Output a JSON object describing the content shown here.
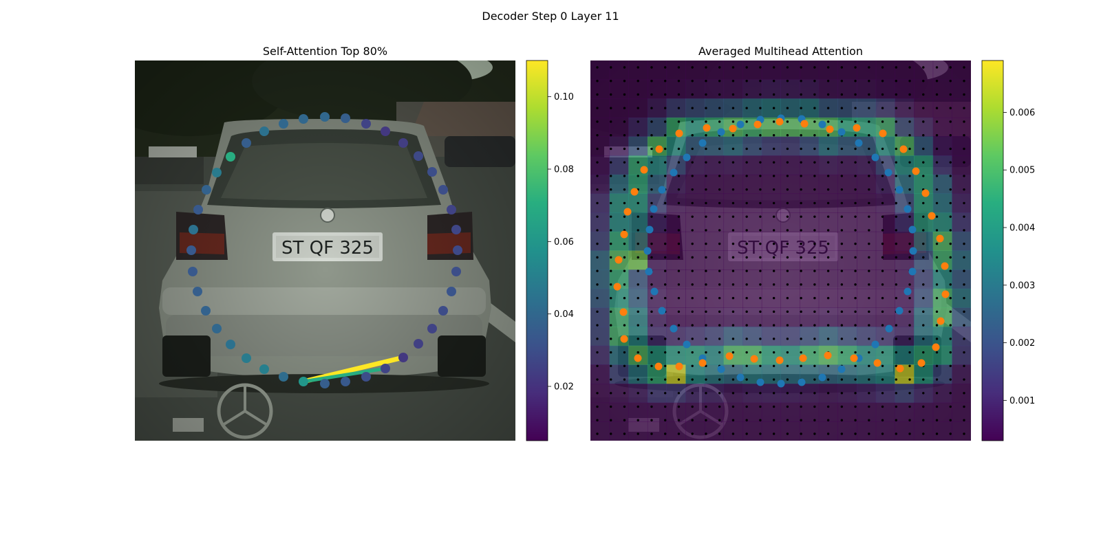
{
  "figure": {
    "suptitle": "Decoder Step 0 Layer 11"
  },
  "chart_data": [
    {
      "type": "scatter",
      "title": "Self-Attention Top 80%",
      "background": "car rear view photograph",
      "colormap": "viridis",
      "colorbar": {
        "min": 0.005,
        "max": 0.11,
        "ticks": [
          0.02,
          0.04,
          0.06,
          0.08,
          0.1
        ]
      },
      "points": [
        {
          "x": 472,
          "y": 170,
          "v": 0.04
        },
        {
          "x": 502,
          "y": 172,
          "v": 0.036
        },
        {
          "x": 532,
          "y": 180,
          "v": 0.026
        },
        {
          "x": 560,
          "y": 191,
          "v": 0.022
        },
        {
          "x": 586,
          "y": 208,
          "v": 0.024
        },
        {
          "x": 608,
          "y": 227,
          "v": 0.028
        },
        {
          "x": 628,
          "y": 250,
          "v": 0.03
        },
        {
          "x": 644,
          "y": 276,
          "v": 0.03
        },
        {
          "x": 656,
          "y": 305,
          "v": 0.026
        },
        {
          "x": 663,
          "y": 334,
          "v": 0.027
        },
        {
          "x": 665,
          "y": 364,
          "v": 0.028
        },
        {
          "x": 663,
          "y": 395,
          "v": 0.03
        },
        {
          "x": 656,
          "y": 424,
          "v": 0.032
        },
        {
          "x": 644,
          "y": 452,
          "v": 0.029
        },
        {
          "x": 628,
          "y": 478,
          "v": 0.026
        },
        {
          "x": 608,
          "y": 500,
          "v": 0.025
        },
        {
          "x": 586,
          "y": 520,
          "v": 0.022
        },
        {
          "x": 560,
          "y": 536,
          "v": 0.026
        },
        {
          "x": 532,
          "y": 548,
          "v": 0.03
        },
        {
          "x": 502,
          "y": 555,
          "v": 0.034
        },
        {
          "x": 472,
          "y": 558,
          "v": 0.036
        },
        {
          "x": 441,
          "y": 555,
          "v": 0.06
        },
        {
          "x": 412,
          "y": 548,
          "v": 0.042
        },
        {
          "x": 384,
          "y": 537,
          "v": 0.05
        },
        {
          "x": 358,
          "y": 521,
          "v": 0.048
        },
        {
          "x": 335,
          "y": 501,
          "v": 0.044
        },
        {
          "x": 315,
          "y": 478,
          "v": 0.04
        },
        {
          "x": 299,
          "y": 452,
          "v": 0.038
        },
        {
          "x": 287,
          "y": 424,
          "v": 0.036
        },
        {
          "x": 280,
          "y": 395,
          "v": 0.034
        },
        {
          "x": 278,
          "y": 364,
          "v": 0.034
        },
        {
          "x": 281,
          "y": 334,
          "v": 0.044
        },
        {
          "x": 288,
          "y": 305,
          "v": 0.034
        },
        {
          "x": 300,
          "y": 276,
          "v": 0.038
        },
        {
          "x": 315,
          "y": 251,
          "v": 0.048
        },
        {
          "x": 335,
          "y": 228,
          "v": 0.07
        },
        {
          "x": 358,
          "y": 208,
          "v": 0.036
        },
        {
          "x": 384,
          "y": 191,
          "v": 0.044
        },
        {
          "x": 412,
          "y": 180,
          "v": 0.04
        },
        {
          "x": 441,
          "y": 173,
          "v": 0.04
        }
      ],
      "segments": [
        {
          "from": [
            441,
            555
          ],
          "to": [
            586,
            520
          ],
          "v": 0.11
        },
        {
          "from": [
            441,
            555
          ],
          "to": [
            560,
            536
          ],
          "v": 0.07
        }
      ]
    },
    {
      "type": "heatmap",
      "title": "Averaged Multihead Attention",
      "background": "car rear view photograph",
      "colormap": "viridis",
      "colorbar": {
        "min": 0.0003,
        "max": 0.0069,
        "ticks": [
          0.001,
          0.002,
          0.003,
          0.004,
          0.005,
          0.006
        ]
      },
      "series": [
        {
          "color": "#1f77b4",
          "points": [
            [
              1135,
              172
            ],
            [
              1165,
              173
            ],
            [
              1105,
              174
            ],
            [
              1195,
              181
            ],
            [
              1076,
              181
            ],
            [
              1223,
              192
            ],
            [
              1048,
              192
            ],
            [
              1248,
              208
            ],
            [
              1021,
              208
            ],
            [
              1272,
              229
            ],
            [
              998,
              229
            ],
            [
              1291,
              251
            ],
            [
              979,
              251
            ],
            [
              1307,
              276
            ],
            [
              962,
              276
            ],
            [
              1319,
              304
            ],
            [
              950,
              304
            ],
            [
              1326,
              334
            ],
            [
              944,
              334
            ],
            [
              1327,
              365
            ],
            [
              941,
              365
            ],
            [
              1326,
              395
            ],
            [
              943,
              395
            ],
            [
              1319,
              424
            ],
            [
              951,
              424
            ],
            [
              1307,
              452
            ],
            [
              962,
              452
            ],
            [
              1292,
              478
            ],
            [
              979,
              478
            ],
            [
              1272,
              501
            ],
            [
              998,
              501
            ],
            [
              1248,
              521
            ],
            [
              1021,
              521
            ],
            [
              1223,
              537
            ],
            [
              1048,
              537
            ],
            [
              1195,
              549
            ],
            [
              1076,
              549
            ],
            [
              1165,
              556
            ],
            [
              1105,
              556
            ],
            [
              1135,
              558
            ]
          ]
        },
        {
          "color": "#ff7f0e",
          "points": [
            [
              1133,
              177
            ],
            [
              1169,
              180
            ],
            [
              1101,
              181
            ],
            [
              1065,
              187
            ],
            [
              1027,
              186
            ],
            [
              1206,
              188
            ],
            [
              1245,
              186
            ],
            [
              1283,
              194
            ],
            [
              987,
              194
            ],
            [
              1313,
              217
            ],
            [
              958,
              217
            ],
            [
              1331,
              249
            ],
            [
              936,
              247
            ],
            [
              1345,
              281
            ],
            [
              922,
              279
            ],
            [
              1354,
              314
            ],
            [
              912,
              308
            ],
            [
              1366,
              347
            ],
            [
              907,
              341
            ],
            [
              1373,
              387
            ],
            [
              899,
              378
            ],
            [
              1374,
              428
            ],
            [
              897,
              417
            ],
            [
              1367,
              467
            ],
            [
              906,
              454
            ],
            [
              1360,
              505
            ],
            [
              907,
              493
            ],
            [
              1339,
              528
            ],
            [
              927,
              521
            ],
            [
              1308,
              536
            ],
            [
              957,
              533
            ],
            [
              1275,
              528
            ],
            [
              987,
              533
            ],
            [
              1241,
              521
            ],
            [
              1021,
              528
            ],
            [
              1203,
              517
            ],
            [
              1060,
              518
            ],
            [
              1167,
              521
            ],
            [
              1096,
              522
            ],
            [
              1133,
              524
            ]
          ]
        }
      ],
      "grid": {
        "cols": 20,
        "rows": 20
      }
    }
  ]
}
